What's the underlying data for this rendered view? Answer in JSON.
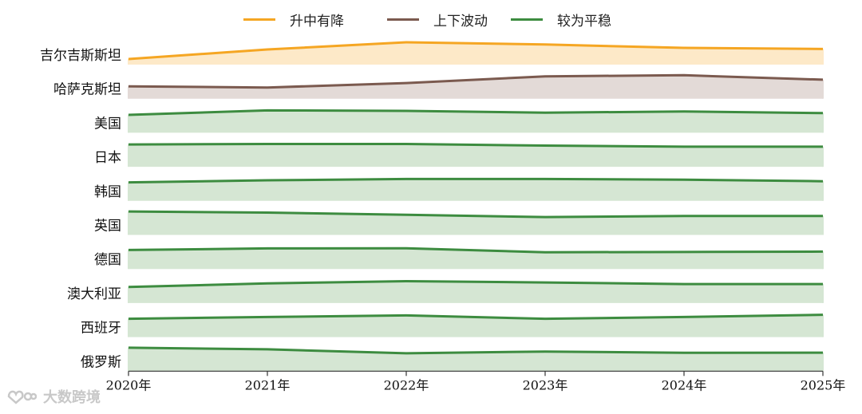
{
  "legend": [
    {
      "label": "升中有降",
      "color": "#F5A623"
    },
    {
      "label": "上下波动",
      "color": "#7B5A4F"
    },
    {
      "label": "较为平稳",
      "color": "#3D8C40"
    }
  ],
  "watermark": {
    "text": "大数跨境"
  },
  "chart_data": {
    "type": "area",
    "x": [
      "2020年",
      "2021年",
      "2022年",
      "2023年",
      "2024年",
      "2025年"
    ],
    "series": [
      {
        "name": "吉尔吉斯斯坦",
        "group": "升中有降",
        "values": [
          0.25,
          0.68,
          1.0,
          0.9,
          0.75,
          0.7
        ],
        "color": "#F5A623",
        "fill": "#FDE9C8"
      },
      {
        "name": "哈萨克斯坦",
        "group": "上下波动",
        "values": [
          0.55,
          0.5,
          0.7,
          1.0,
          1.05,
          0.85
        ],
        "color": "#7B5A4F",
        "fill": "#E3DAD7"
      },
      {
        "name": "美国",
        "group": "较为平稳",
        "values": [
          0.8,
          1.0,
          0.98,
          0.9,
          0.95,
          0.88
        ],
        "color": "#3D8C40",
        "fill": "#D5E6D3"
      },
      {
        "name": "日本",
        "group": "较为平稳",
        "values": [
          1.0,
          1.02,
          1.02,
          0.95,
          0.9,
          0.9
        ],
        "color": "#3D8C40",
        "fill": "#D5E6D3"
      },
      {
        "name": "韩国",
        "group": "较为平稳",
        "values": [
          0.83,
          0.92,
          0.98,
          0.98,
          0.95,
          0.88
        ],
        "color": "#3D8C40",
        "fill": "#D5E6D3"
      },
      {
        "name": "英国",
        "group": "较为平稳",
        "values": [
          1.05,
          1.0,
          0.9,
          0.8,
          0.85,
          0.85
        ],
        "color": "#3D8C40",
        "fill": "#D5E6D3"
      },
      {
        "name": "德国",
        "group": "较为平稳",
        "values": [
          0.85,
          0.92,
          0.93,
          0.75,
          0.76,
          0.78
        ],
        "color": "#3D8C40",
        "fill": "#D5E6D3"
      },
      {
        "name": "澳大利亚",
        "group": "较为平稳",
        "values": [
          0.72,
          0.88,
          0.98,
          0.92,
          0.85,
          0.85
        ],
        "color": "#3D8C40",
        "fill": "#D5E6D3"
      },
      {
        "name": "西班牙",
        "group": "较为平稳",
        "values": [
          0.82,
          0.9,
          0.97,
          0.82,
          0.9,
          1.0
        ],
        "color": "#3D8C40",
        "fill": "#D5E6D3"
      },
      {
        "name": "俄罗斯",
        "group": "较为平稳",
        "values": [
          1.05,
          0.98,
          0.8,
          0.88,
          0.82,
          0.83
        ],
        "color": "#3D8C40",
        "fill": "#D5E6D3"
      }
    ]
  }
}
